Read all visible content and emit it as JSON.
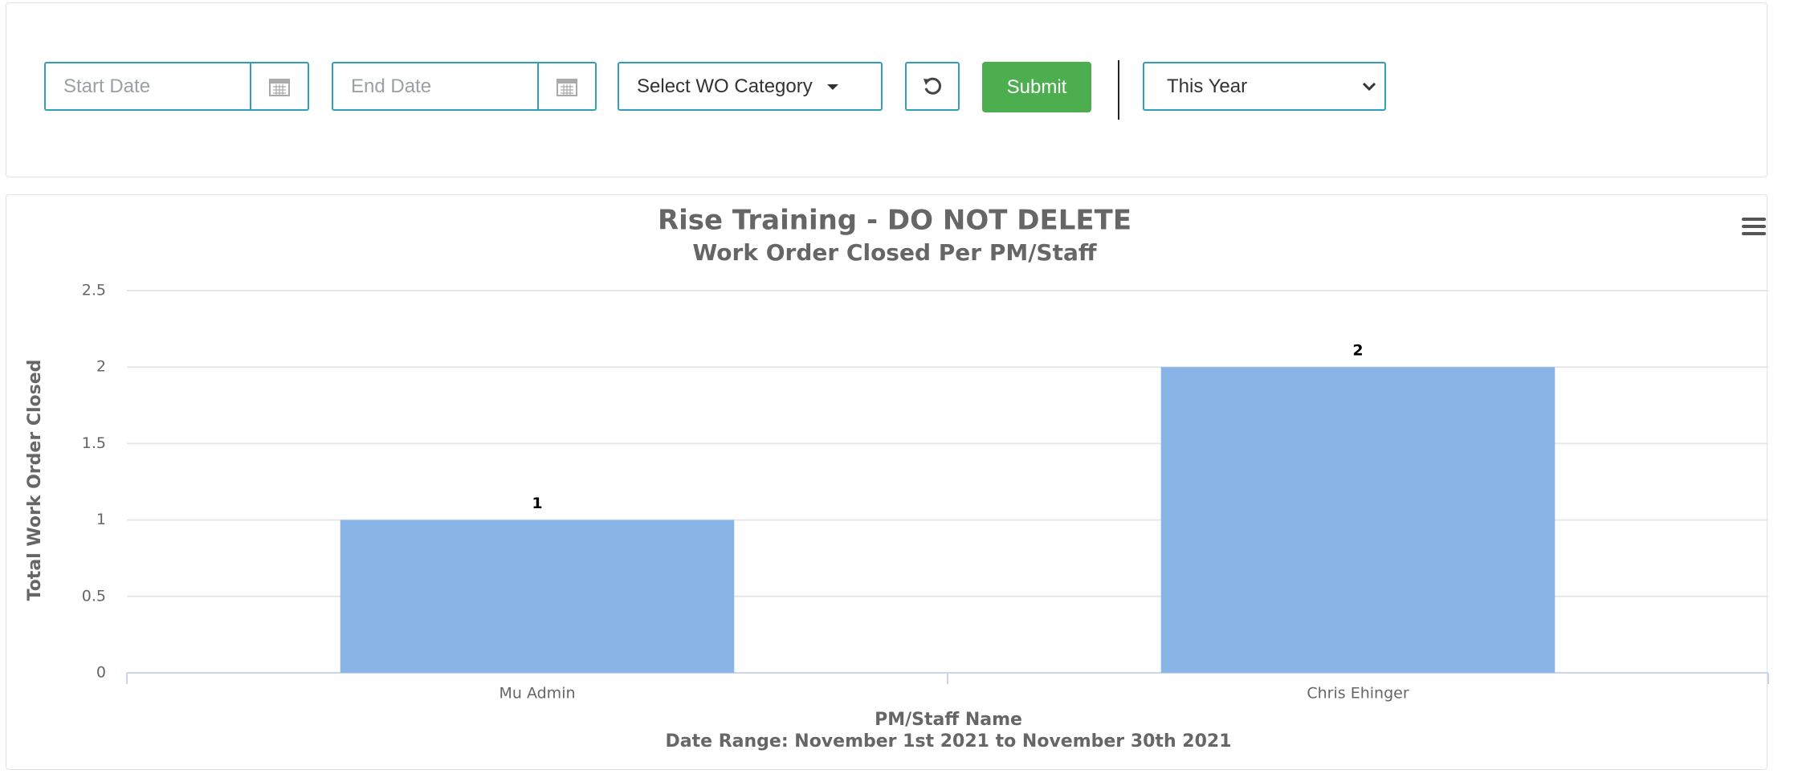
{
  "filters": {
    "start_date": "Start Date",
    "end_date": "End Date",
    "category": "Select WO Category",
    "submit": "Submit",
    "period": "This Year"
  },
  "chart_data": {
    "type": "bar",
    "title": "Rise Training - DO NOT DELETE",
    "subtitle": "Work Order Closed Per PM/Staff",
    "categories": [
      "Mu Admin",
      "Chris Ehinger"
    ],
    "values": [
      1,
      2
    ],
    "color": "#88b4e6",
    "ylim": [
      0,
      2.5
    ],
    "yticks": [
      0,
      0.5,
      1,
      1.5,
      2,
      2.5
    ],
    "grid": true,
    "xlabel": "PM/Staff Name",
    "ylabel": "Total Work Order Closed",
    "caption": "Date Range: November 1st 2021 to November 30th 2021"
  }
}
